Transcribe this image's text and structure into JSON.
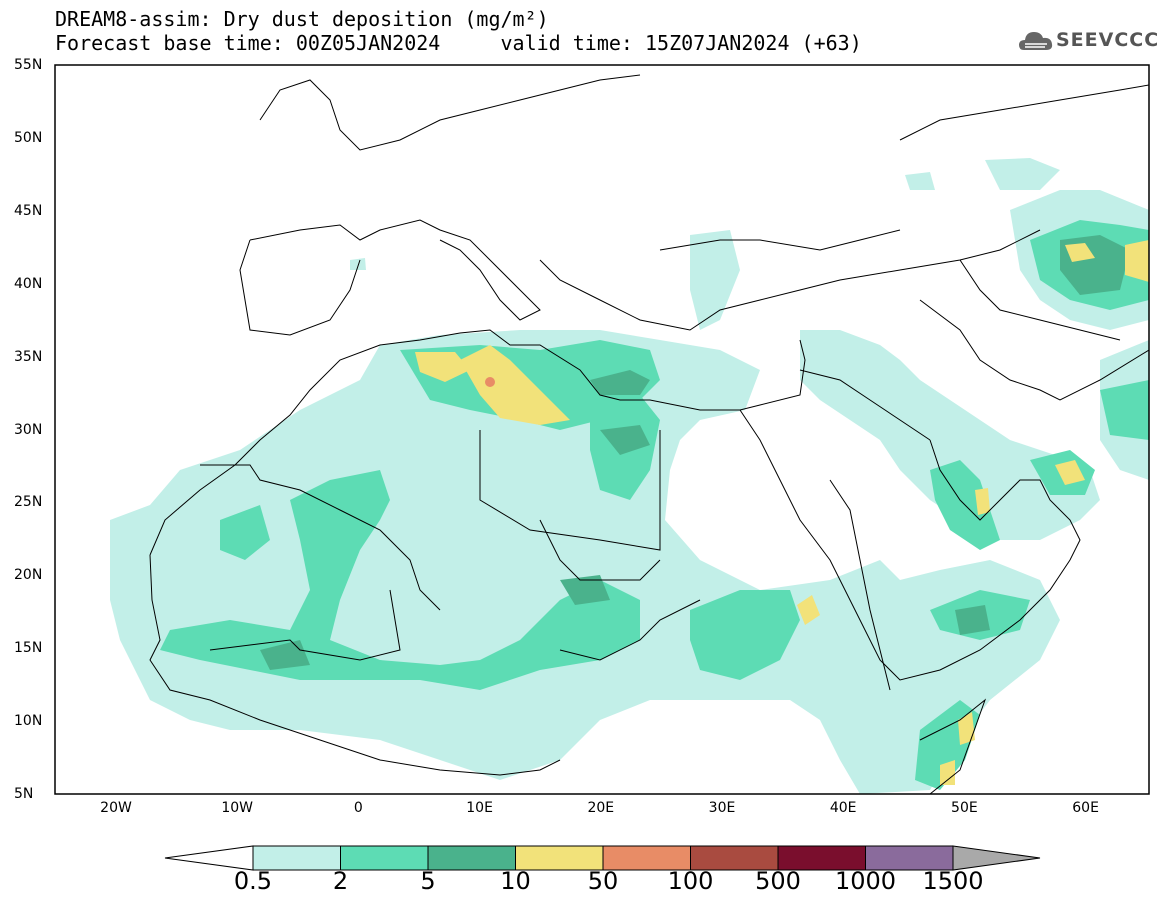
{
  "title": {
    "line1": "DREAM8-assim: Dry dust deposition (mg/m²)",
    "line2": "Forecast base time: 00Z05JAN2024     valid time: 15Z07JAN2024 (+63)"
  },
  "logo": {
    "text": "SEEVCCC",
    "icon": "cloud-icon"
  },
  "map": {
    "lat_labels": [
      "55N",
      "50N",
      "45N",
      "40N",
      "35N",
      "30N",
      "25N",
      "20N",
      "15N",
      "10N",
      "5N"
    ],
    "lon_labels": [
      "20W",
      "10W",
      "0",
      "10E",
      "20E",
      "30E",
      "40E",
      "50E",
      "60E"
    ]
  },
  "colorbar": {
    "labels": [
      "0.5",
      "2",
      "5",
      "10",
      "50",
      "100",
      "500",
      "1000",
      "1500"
    ],
    "colors": [
      "#c2efe8",
      "#5ddcb4",
      "#4ab28c",
      "#f2e27a",
      "#e88c66",
      "#a94b40",
      "#7a0e2d",
      "#8a6b9c",
      "#a9a9a9"
    ]
  }
}
